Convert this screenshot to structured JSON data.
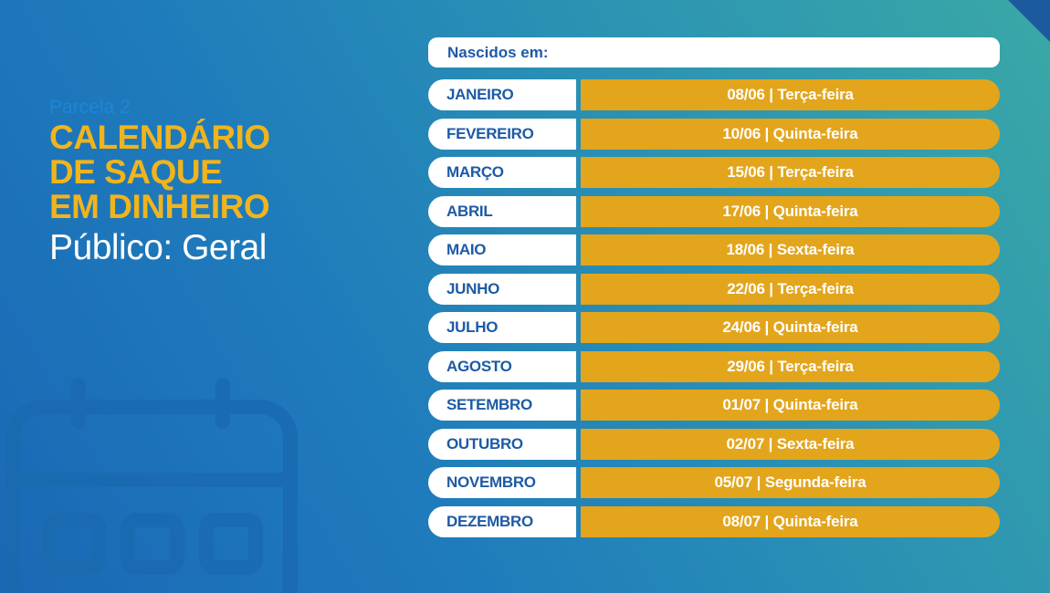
{
  "left": {
    "parcela": "Parcela 2",
    "title_lines": [
      "CALENDÁRIO",
      "DE SAQUE",
      "EM DINHEIRO"
    ],
    "publico": "Público: Geral"
  },
  "table": {
    "header": "Nascidos em:",
    "rows": [
      {
        "month": "JANEIRO",
        "date": "08/06 | Terça-feira"
      },
      {
        "month": "FEVEREIRO",
        "date": "10/06 | Quinta-feira"
      },
      {
        "month": "MARÇO",
        "date": "15/06 | Terça-feira"
      },
      {
        "month": "ABRIL",
        "date": "17/06 | Quinta-feira"
      },
      {
        "month": "MAIO",
        "date": "18/06 | Sexta-feira"
      },
      {
        "month": "JUNHO",
        "date": "22/06 | Terça-feira"
      },
      {
        "month": "JULHO",
        "date": "24/06 | Quinta-feira"
      },
      {
        "month": "AGOSTO",
        "date": "29/06 | Terça-feira"
      },
      {
        "month": "SETEMBRO",
        "date": "01/07 | Quinta-feira"
      },
      {
        "month": "OUTUBRO",
        "date": "02/07 | Sexta-feira"
      },
      {
        "month": "NOVEMBRO",
        "date": "05/07 | Segunda-feira"
      },
      {
        "month": "DEZEMBRO",
        "date": "08/07 | Quinta-feira"
      }
    ]
  },
  "colors": {
    "accent_yellow": "#f0b41c",
    "date_bar": "#e3a51c",
    "month_text": "#1d5aa6",
    "background_start": "#1a68b5",
    "background_end": "#3aa8a6"
  },
  "icons": {
    "decor": "calendar-icon"
  }
}
